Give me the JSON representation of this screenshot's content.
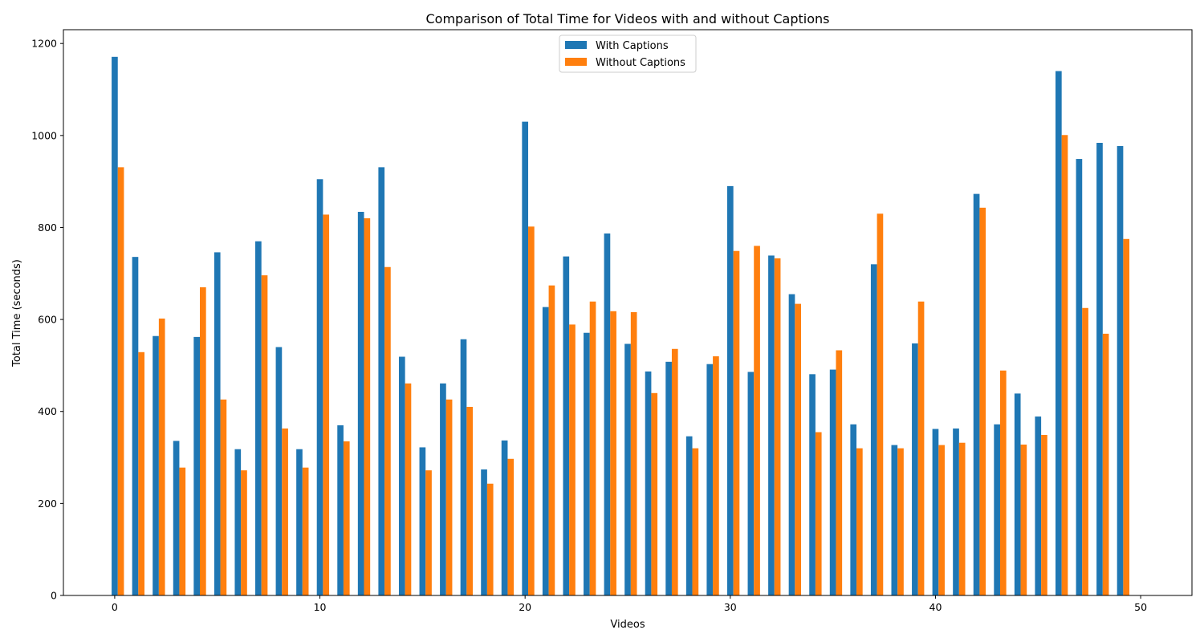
{
  "chart_data": {
    "type": "bar",
    "title": "Comparison of Total Time for Videos with and without Captions",
    "xlabel": "Videos",
    "ylabel": "Total Time (seconds)",
    "xlim": [
      -2.5,
      52.5
    ],
    "ylim": [
      0,
      1230
    ],
    "xticks": [
      0,
      10,
      20,
      30,
      40,
      50
    ],
    "yticks": [
      0,
      200,
      400,
      600,
      800,
      1000,
      1200
    ],
    "grid": false,
    "legend_position": "top-center",
    "x": [
      0,
      1,
      2,
      3,
      4,
      5,
      6,
      7,
      8,
      9,
      10,
      11,
      12,
      13,
      14,
      15,
      16,
      17,
      18,
      19,
      20,
      21,
      22,
      23,
      24,
      25,
      26,
      27,
      28,
      29,
      30,
      31,
      32,
      33,
      34,
      35,
      36,
      37,
      38,
      39,
      40,
      41,
      42,
      43,
      44,
      45,
      46,
      47,
      48,
      49
    ],
    "series": [
      {
        "name": "With Captions",
        "color": "#1f77b4",
        "values": [
          1171,
          736,
          564,
          336,
          562,
          746,
          318,
          770,
          540,
          318,
          905,
          370,
          834,
          931,
          519,
          322,
          461,
          557,
          274,
          337,
          1030,
          627,
          737,
          571,
          787,
          547,
          487,
          508,
          346,
          503,
          890,
          486,
          739,
          655,
          481,
          491,
          372,
          720,
          327,
          548,
          362,
          363,
          873,
          372,
          439,
          389,
          1140,
          949,
          984,
          977
        ]
      },
      {
        "name": "Without Captions",
        "color": "#ff7f0e",
        "values": [
          931,
          529,
          602,
          278,
          670,
          426,
          272,
          696,
          363,
          278,
          828,
          335,
          820,
          714,
          461,
          272,
          426,
          410,
          243,
          297,
          802,
          674,
          589,
          639,
          618,
          616,
          440,
          536,
          320,
          520,
          749,
          760,
          733,
          634,
          355,
          533,
          320,
          830,
          320,
          639,
          327,
          332,
          843,
          489,
          328,
          349,
          1001,
          625,
          569,
          775
        ]
      }
    ]
  }
}
